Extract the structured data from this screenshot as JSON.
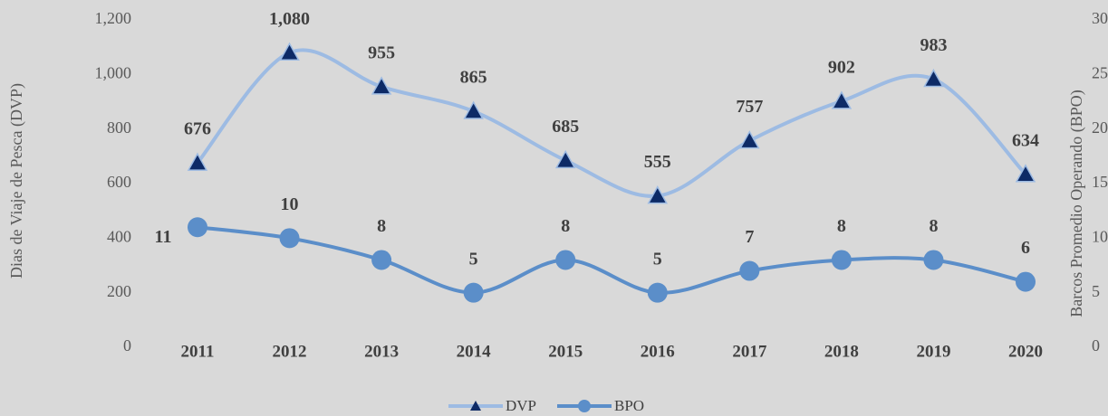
{
  "chart_data": {
    "type": "line",
    "categories": [
      "2011",
      "2012",
      "2013",
      "2014",
      "2015",
      "2016",
      "2017",
      "2018",
      "2019",
      "2020"
    ],
    "y_label": "Dias de Viaje de Pesca (DVP)",
    "y2_label": "Barcos Promedio Operando (BPO)",
    "ylim": [
      0,
      1200
    ],
    "yticks": [
      0,
      200,
      400,
      600,
      800,
      {
        "value": 1000,
        "label": "1,000"
      },
      {
        "value": 1200,
        "label": "1,200"
      }
    ],
    "y2lim": [
      0,
      30
    ],
    "y2ticks": [
      0,
      5,
      10,
      15,
      20,
      25,
      30
    ],
    "legend": "bottom",
    "series": [
      {
        "name": "DVP",
        "color": "#9dbbe3",
        "marker_color": "#0d2a66",
        "marker": "triangle",
        "values": [
          676,
          1080,
          955,
          865,
          685,
          555,
          757,
          902,
          983,
          634
        ],
        "value_labels": [
          "676",
          "1,080",
          "955",
          "865",
          "685",
          "555",
          "757",
          "902",
          "983",
          "634"
        ]
      },
      {
        "name": "BPO",
        "color": "#5b8ec9",
        "marker_color": "#5b8ec9",
        "marker": "circle",
        "axis": "y2",
        "values": [
          11,
          10,
          8,
          5,
          8,
          5,
          7,
          8,
          8,
          6
        ]
      }
    ]
  }
}
